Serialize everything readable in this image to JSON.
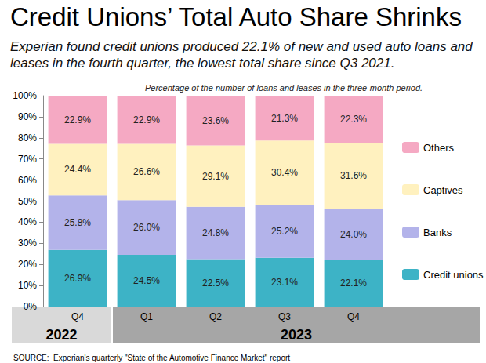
{
  "chart_data": {
    "type": "bar",
    "title": "Credit Unions’ Total Auto Share Shrinks",
    "subtitle": "Experian found credit unions produced 22.1% of new and used auto loans and leases in the fourth quarter, the lowest total share since Q3 2021.",
    "note": "Percentage of the number of loans and leases in the three-month period.",
    "source": "SOURCE:  Experian's quarterly \"State of the Automotive Finance Market\" report",
    "categories": [
      "Q4",
      "Q1",
      "Q2",
      "Q3",
      "Q4"
    ],
    "years": [
      "2022",
      "2023",
      "2023",
      "2023",
      "2023"
    ],
    "series": [
      {
        "name": "Credit unions",
        "color": "#3db3c6",
        "values": [
          26.9,
          24.5,
          22.5,
          23.1,
          22.1
        ],
        "value_labels": [
          "26.9%",
          "24.5%",
          "22.5%",
          "23.1%",
          "22.1%"
        ]
      },
      {
        "name": "Banks",
        "color": "#b3b3ea",
        "values": [
          25.8,
          26.0,
          24.8,
          25.2,
          24.0
        ],
        "value_labels": [
          "25.8%",
          "26.0%",
          "24.8%",
          "25.2%",
          "24.0%"
        ]
      },
      {
        "name": "Captives",
        "color": "#fff1bf",
        "values": [
          24.4,
          26.6,
          29.1,
          30.4,
          31.6
        ],
        "value_labels": [
          "24.4%",
          "26.6%",
          "29.1%",
          "30.4%",
          "31.6%"
        ]
      },
      {
        "name": "Others",
        "color": "#f5a9c3",
        "values": [
          22.9,
          22.9,
          23.6,
          21.3,
          22.3
        ],
        "value_labels": [
          "22.9%",
          "22.9%",
          "23.6%",
          "21.3%",
          "22.3%"
        ]
      }
    ],
    "ylim": [
      0,
      100
    ],
    "yticks": [
      {
        "value": 0,
        "label": "0%"
      },
      {
        "value": 10,
        "label": "10%"
      },
      {
        "value": 20,
        "label": "20%"
      },
      {
        "value": 30,
        "label": "30%"
      },
      {
        "value": 40,
        "label": "40%"
      },
      {
        "value": 50,
        "label": "50%"
      },
      {
        "value": 60,
        "label": "60%"
      },
      {
        "value": 70,
        "label": "70%"
      },
      {
        "value": 80,
        "label": "80%"
      },
      {
        "value": 90,
        "label": "90%"
      },
      {
        "value": 100,
        "label": "100%"
      }
    ],
    "stacked": true,
    "data_labels": true,
    "grid": false,
    "legend": "right"
  }
}
